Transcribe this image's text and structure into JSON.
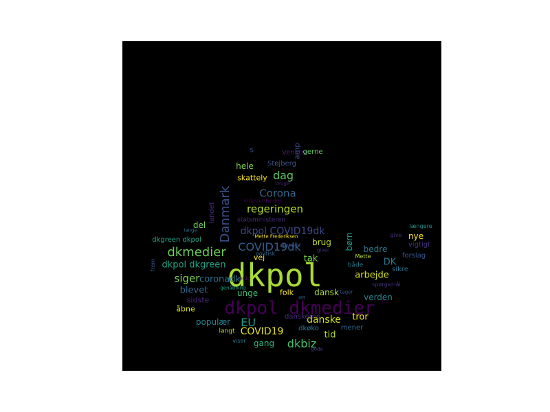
{
  "wordcloud": {
    "words": [
      {
        "text": "dkpol",
        "color": "#a8db34",
        "mono": true
      },
      {
        "text": "dkpol dkmedier",
        "color": "#440154",
        "mono": true
      },
      {
        "text": "dkmedier",
        "color": "#6ccd5a"
      },
      {
        "text": "COVID19dk",
        "color": "#355f8d"
      },
      {
        "text": "Danmark",
        "color": "#3b528b",
        "vertical": true
      },
      {
        "text": "regeringen",
        "color": "#b5de2b"
      },
      {
        "text": "Corona",
        "color": "#31688e"
      },
      {
        "text": "dkpol COVID19dk",
        "color": "#3e4989"
      },
      {
        "text": "dag",
        "color": "#5ec962"
      },
      {
        "text": "dkpol dkgreen",
        "color": "#20a386"
      },
      {
        "text": "siger",
        "color": "#7ad151"
      },
      {
        "text": "coronadk",
        "color": "#2c728e"
      },
      {
        "text": "COVID19",
        "color": "#e5e419"
      },
      {
        "text": "EU",
        "color": "#1f9e89"
      },
      {
        "text": "danske",
        "color": "#d2e21b"
      },
      {
        "text": "dkbiz",
        "color": "#4ac16d"
      },
      {
        "text": "tak",
        "color": "#7ad151"
      },
      {
        "text": "DK",
        "color": "#2a788e"
      },
      {
        "text": "arbejde",
        "color": "#d8e219"
      },
      {
        "text": "blevet",
        "color": "#31688e"
      },
      {
        "text": "unge",
        "color": "#3fbc73"
      },
      {
        "text": "dansk",
        "color": "#aadc32"
      },
      {
        "text": "verden",
        "color": "#26828e"
      },
      {
        "text": "tror",
        "color": "#fde725"
      },
      {
        "text": "tid",
        "color": "#b5de2b"
      },
      {
        "text": "populær",
        "color": "#26828e"
      },
      {
        "text": "gang",
        "color": "#35b779"
      },
      {
        "text": "hele",
        "color": "#7ad151"
      },
      {
        "text": "skattely",
        "color": "#fde725"
      },
      {
        "text": "Støjberg",
        "color": "#3b528b"
      },
      {
        "text": "Venstre",
        "color": "#481f70"
      },
      {
        "text": "gerne",
        "color": "#5ec962"
      },
      {
        "text": "amp",
        "color": "#3e4989",
        "vertical": true
      },
      {
        "text": "s",
        "color": "#3b528b"
      },
      {
        "text": "brug",
        "color": "#bddf26"
      },
      {
        "text": "børn",
        "color": "#1fa187",
        "vertical": true
      },
      {
        "text": "bedre",
        "color": "#2a788e"
      },
      {
        "text": "nye",
        "color": "#fde725"
      },
      {
        "text": "vigtigt",
        "color": "#46337e"
      },
      {
        "text": "forslag",
        "color": "#39568c"
      },
      {
        "text": "sikre",
        "color": "#2c728e"
      },
      {
        "text": "del",
        "color": "#6ece58"
      },
      {
        "text": "dkgreen dkpol",
        "color": "#20a386"
      },
      {
        "text": "landet",
        "color": "#482878",
        "vertical": true
      },
      {
        "text": "sidste",
        "color": "#482475"
      },
      {
        "text": "åbne",
        "color": "#d8e219"
      },
      {
        "text": "folk",
        "color": "#fde725"
      },
      {
        "text": "vej",
        "color": "#fde725"
      },
      {
        "text": "danskerne",
        "color": "#472d7b"
      },
      {
        "text": "mener",
        "color": "#31688e"
      },
      {
        "text": "dkøko",
        "color": "#2a788e"
      },
      {
        "text": "langt",
        "color": "#bddf26"
      },
      {
        "text": "viser",
        "color": "#2a788e"
      },
      {
        "text": "gode",
        "color": "#414487"
      },
      {
        "text": "Mette Frederiksen",
        "color": "#fde725"
      },
      {
        "text": "statsministeren",
        "color": "#472c7a"
      },
      {
        "text": "virksomheder",
        "color": "#440154"
      },
      {
        "text": "bruge",
        "color": "#482677"
      },
      {
        "text": "lange",
        "color": "#2d708e"
      },
      {
        "text": "give",
        "color": "#472d7b"
      },
      {
        "text": "længere",
        "color": "#21908d"
      },
      {
        "text": "både",
        "color": "#2a788e"
      },
      {
        "text": "spørgsmål",
        "color": "#46327e"
      },
      {
        "text": "Mette",
        "color": "#b8de29"
      },
      {
        "text": "økonomi",
        "color": "#3b528b"
      },
      {
        "text": "politisk",
        "color": "#31688e"
      },
      {
        "text": "giver",
        "color": "#46327e"
      },
      {
        "text": "genåbning",
        "color": "#1f9e89"
      },
      {
        "text": "enig",
        "color": "#471365"
      },
      {
        "text": "ret",
        "color": "#2c728e"
      },
      {
        "text": "tager",
        "color": "#39568c"
      },
      {
        "text": "tro",
        "color": "#440154"
      },
      {
        "text": "frem",
        "color": "#39568c",
        "vertical": true
      }
    ]
  }
}
